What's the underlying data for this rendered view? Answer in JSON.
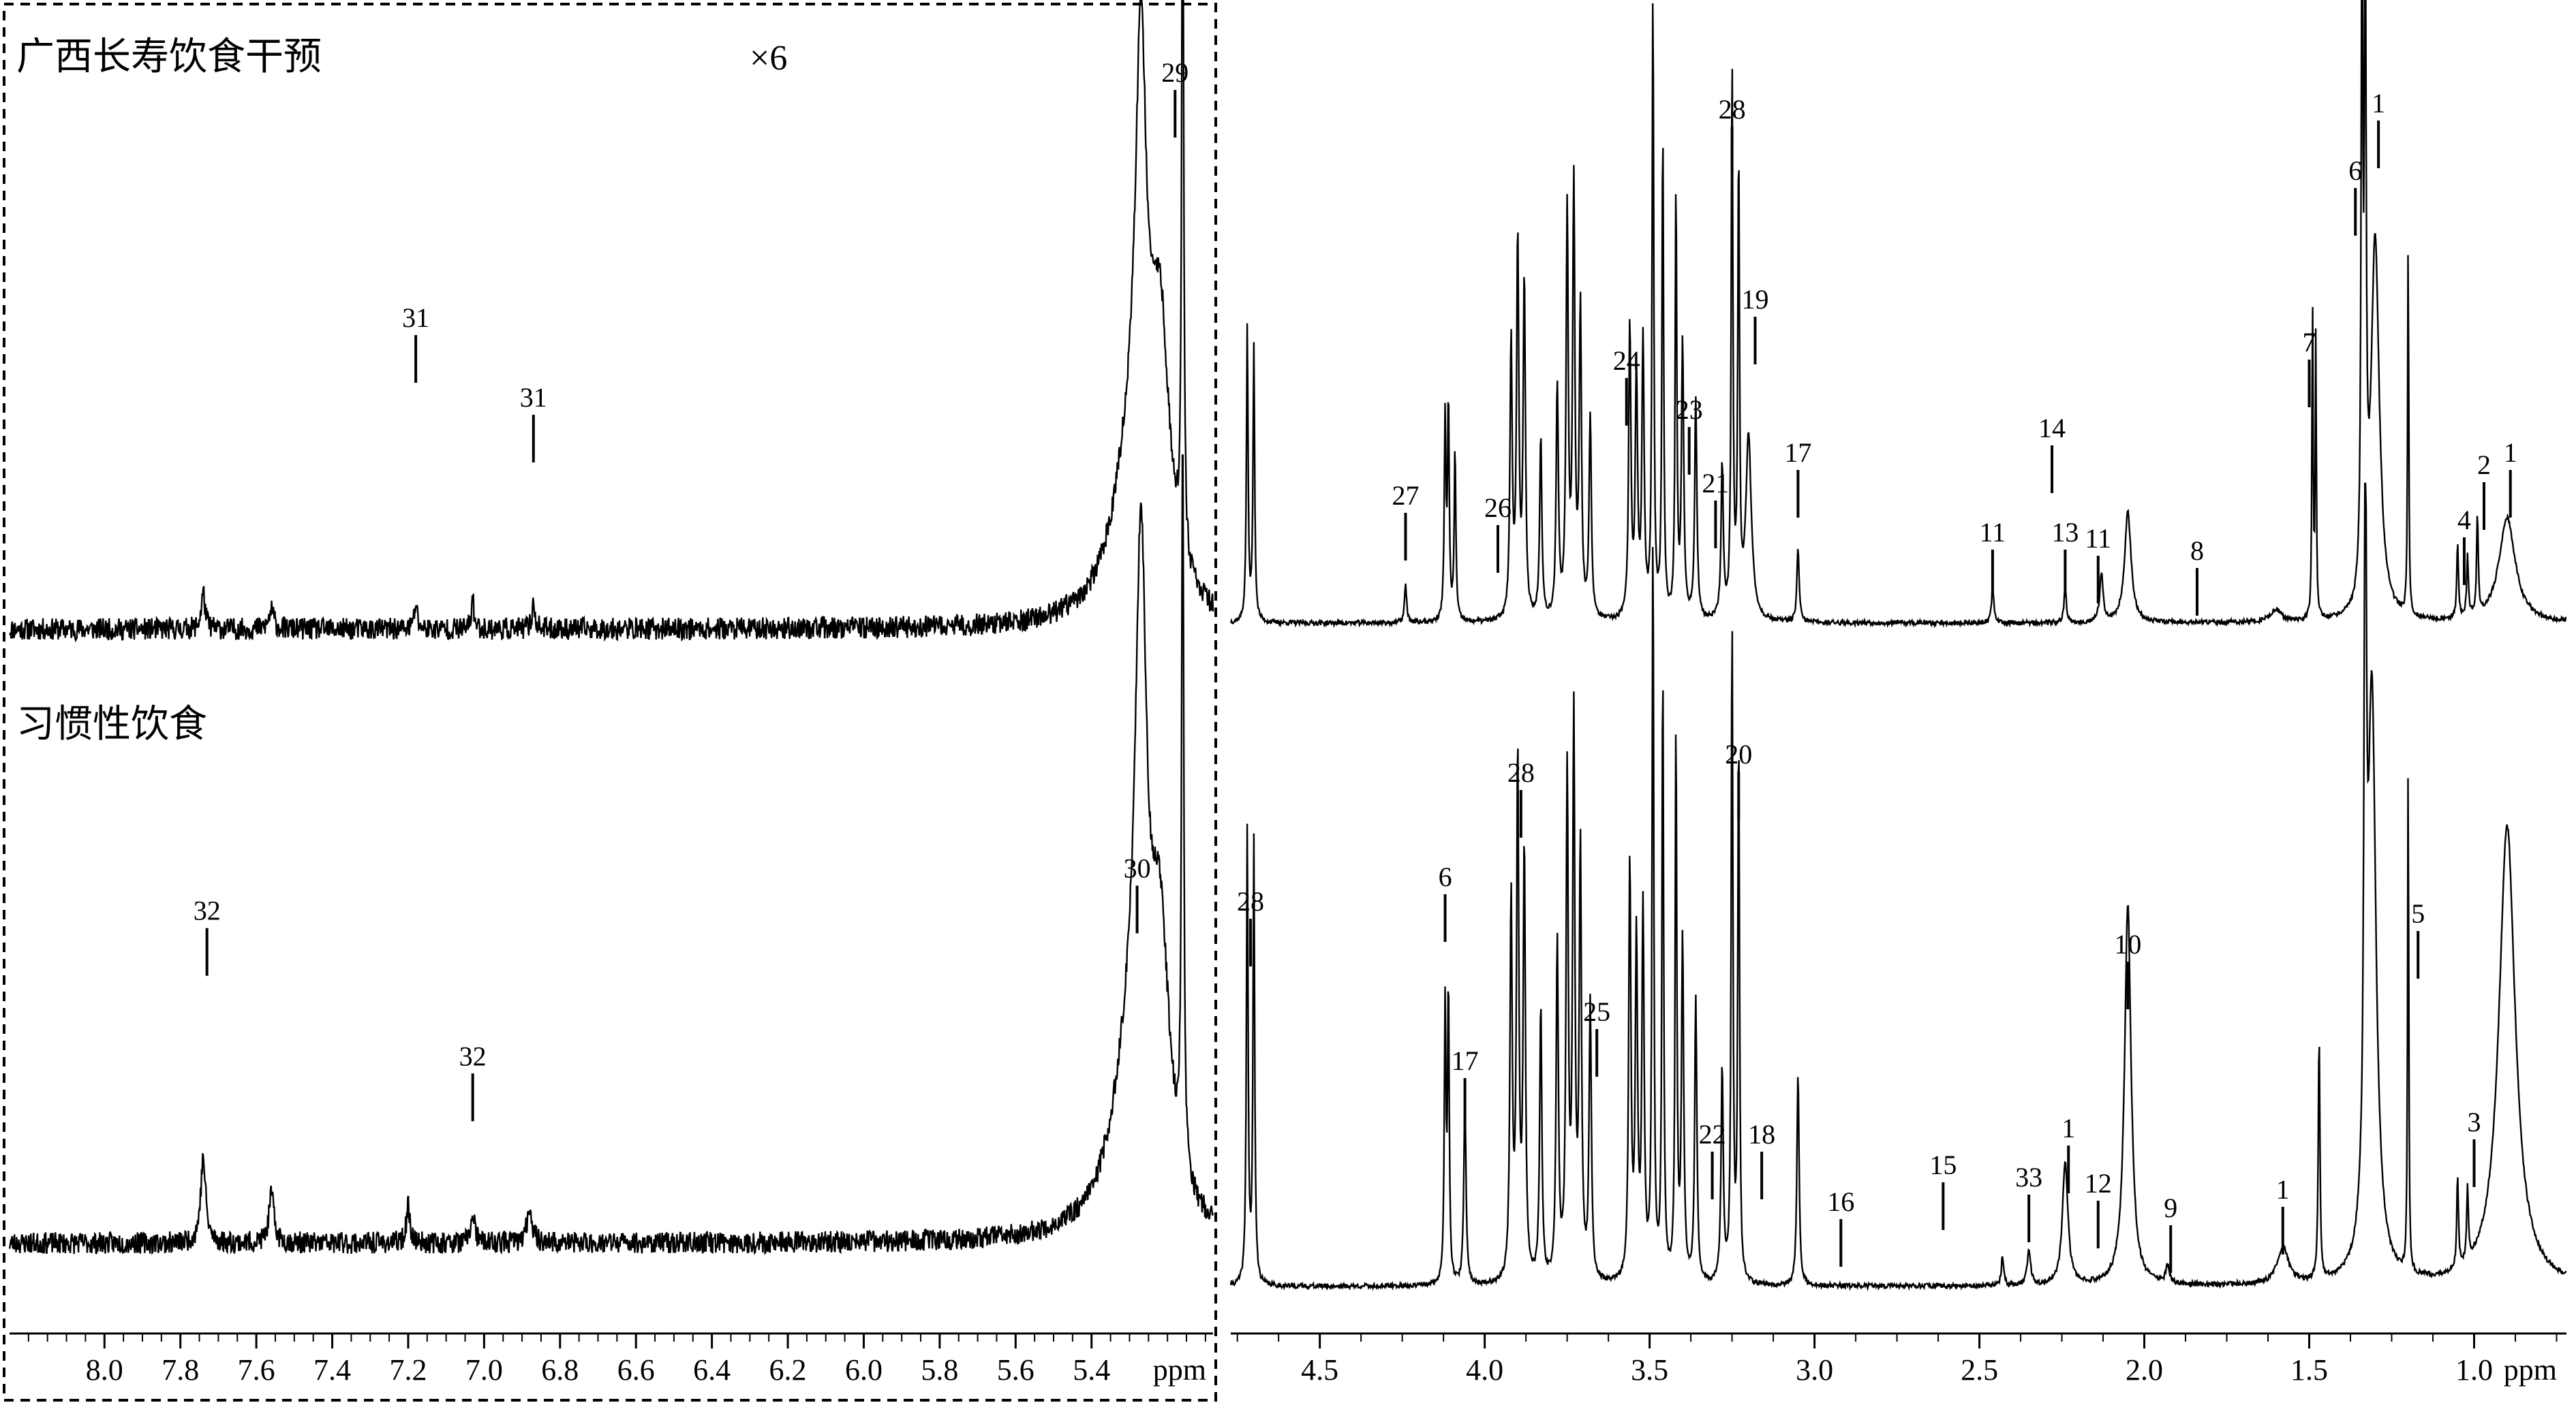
{
  "figure": {
    "panel_labels": {
      "top": "广西长寿饮食干预",
      "bottom": "习惯性饮食"
    },
    "scale_factor": "×6",
    "unit_label": "ppm"
  },
  "colors": {
    "trace": "#000000",
    "background": "#ffffff"
  },
  "chart_data": [
    {
      "type": "line",
      "title": "",
      "panel": "left (aromatic region)",
      "xlabel": "ppm",
      "ylabel": "",
      "xlim": [
        8.25,
        5.08
      ],
      "x_reversed": true,
      "grid": false,
      "x_ticks": [
        8.0,
        7.8,
        7.6,
        7.4,
        7.2,
        7.0,
        6.8,
        6.6,
        6.4,
        6.2,
        6.0,
        5.8,
        5.6,
        5.4
      ],
      "x_tick_labels": [
        "8.0",
        "7.8",
        "7.6",
        "7.4",
        "7.2",
        "7.0",
        "6.8",
        "6.6",
        "6.4",
        "6.2",
        "6.0",
        "5.8",
        "5.6",
        "5.4"
      ],
      "series": [
        {
          "name": "广西长寿饮食干预",
          "trace": {
            "baseline": 0.04,
            "noise": 0.018,
            "wiggle_seed": 11,
            "peaks": [
              [
                7.74,
                0.06,
                0.006
              ],
              [
                7.56,
                0.03,
                0.008
              ],
              [
                7.18,
                0.04,
                0.005
              ],
              [
                7.03,
                0.05,
                0.004
              ],
              [
                6.87,
                0.04,
                0.005
              ],
              [
                5.27,
                0.74,
                0.018
              ],
              [
                5.22,
                0.42,
                0.03
              ],
              [
                5.16,
                1.22,
                0.003
              ],
              [
                5.3,
                0.22,
                0.06
              ]
            ]
          },
          "annotations": [
            {
              "label": "31",
              "x": 7.18,
              "y": 0.52
            },
            {
              "label": "31",
              "x": 6.87,
              "y": 0.39
            },
            {
              "label": "29",
              "x": 5.18,
              "y": 0.92
            }
          ]
        },
        {
          "name": "习惯性饮食",
          "trace": {
            "baseline": 0.05,
            "noise": 0.018,
            "wiggle_seed": 23,
            "peaks": [
              [
                7.74,
                0.14,
                0.008
              ],
              [
                7.56,
                0.08,
                0.008
              ],
              [
                7.2,
                0.06,
                0.006
              ],
              [
                7.03,
                0.05,
                0.006
              ],
              [
                6.88,
                0.06,
                0.008
              ],
              [
                5.27,
                0.9,
                0.018
              ],
              [
                5.22,
                0.42,
                0.03
              ],
              [
                5.16,
                1.3,
                0.003
              ],
              [
                5.3,
                0.25,
                0.06
              ]
            ]
          },
          "annotations": [
            {
              "label": "32",
              "x": 7.73,
              "y": 0.57
            },
            {
              "label": "32",
              "x": 7.03,
              "y": 0.33
            },
            {
              "label": "30",
              "x": 5.28,
              "y": 0.64
            }
          ]
        }
      ]
    },
    {
      "type": "line",
      "title": "",
      "panel": "right (aliphatic region)",
      "xlabel": "ppm",
      "ylabel": "",
      "xlim": [
        4.77,
        0.72
      ],
      "x_reversed": true,
      "grid": false,
      "x_ticks": [
        4.5,
        4.0,
        3.5,
        3.0,
        2.5,
        2.0,
        1.5,
        1.0
      ],
      "x_tick_labels": [
        "4.5",
        "4.0",
        "3.5",
        "3.0",
        "2.5",
        "2.0",
        "1.5",
        "1.0"
      ],
      "series": [
        {
          "name": "广西长寿饮食干预",
          "trace": {
            "baseline": 0.05,
            "noise": 0.004,
            "wiggle_seed": 37,
            "peaks": [
              [
                4.72,
                0.48,
                0.003
              ],
              [
                4.7,
                0.45,
                0.003
              ],
              [
                4.24,
                0.06,
                0.004
              ],
              [
                4.12,
                0.33,
                0.003
              ],
              [
                4.11,
                0.35,
                0.003
              ],
              [
                4.09,
                0.28,
                0.003
              ],
              [
                3.92,
                0.45,
                0.004
              ],
              [
                3.9,
                0.62,
                0.004
              ],
              [
                3.88,
                0.55,
                0.004
              ],
              [
                3.83,
                0.3,
                0.004
              ],
              [
                3.78,
                0.38,
                0.004
              ],
              [
                3.75,
                0.66,
                0.004
              ],
              [
                3.73,
                0.7,
                0.004
              ],
              [
                3.71,
                0.5,
                0.004
              ],
              [
                3.68,
                0.33,
                0.004
              ],
              [
                3.56,
                0.48,
                0.004
              ],
              [
                3.54,
                0.4,
                0.004
              ],
              [
                3.52,
                0.45,
                0.004
              ],
              [
                3.49,
                1.02,
                0.003
              ],
              [
                3.46,
                0.8,
                0.003
              ],
              [
                3.42,
                0.7,
                0.003
              ],
              [
                3.4,
                0.45,
                0.004
              ],
              [
                3.36,
                0.36,
                0.004
              ],
              [
                3.28,
                0.25,
                0.004
              ],
              [
                3.25,
                0.9,
                0.003
              ],
              [
                3.23,
                0.74,
                0.003
              ],
              [
                3.2,
                0.3,
                0.01
              ],
              [
                3.05,
                0.12,
                0.004
              ],
              [
                2.46,
                0.06,
                0.004
              ],
              [
                2.24,
                0.06,
                0.004
              ],
              [
                2.13,
                0.08,
                0.006
              ],
              [
                2.05,
                0.18,
                0.012
              ],
              [
                1.6,
                0.02,
                0.02
              ],
              [
                1.49,
                0.52,
                0.002
              ],
              [
                1.48,
                0.46,
                0.002
              ],
              [
                1.34,
                1.1,
                0.003
              ],
              [
                1.33,
                1.05,
                0.003
              ],
              [
                1.3,
                0.62,
                0.015
              ],
              [
                1.2,
                0.62,
                0.002
              ],
              [
                1.05,
                0.12,
                0.003
              ],
              [
                1.02,
                0.1,
                0.003
              ],
              [
                0.99,
                0.16,
                0.003
              ],
              [
                0.9,
                0.17,
                0.03
              ]
            ]
          },
          "annotations": [
            {
              "label": "27",
              "x": 4.24,
              "y": 0.23
            },
            {
              "label": "26",
              "x": 3.96,
              "y": 0.21
            },
            {
              "label": "24",
              "x": 3.57,
              "y": 0.45
            },
            {
              "label": "23",
              "x": 3.38,
              "y": 0.37
            },
            {
              "label": "21",
              "x": 3.3,
              "y": 0.25
            },
            {
              "label": "28",
              "x": 3.25,
              "y": 0.86
            },
            {
              "label": "19",
              "x": 3.18,
              "y": 0.55
            },
            {
              "label": "17",
              "x": 3.05,
              "y": 0.3
            },
            {
              "label": "11",
              "x": 2.46,
              "y": 0.17
            },
            {
              "label": "14",
              "x": 2.28,
              "y": 0.34
            },
            {
              "label": "13",
              "x": 2.24,
              "y": 0.17
            },
            {
              "label": "11",
              "x": 2.14,
              "y": 0.16
            },
            {
              "label": "8",
              "x": 1.84,
              "y": 0.14
            },
            {
              "label": "7",
              "x": 1.5,
              "y": 0.48
            },
            {
              "label": "6",
              "x": 1.36,
              "y": 0.76
            },
            {
              "label": "1",
              "x": 1.29,
              "y": 0.87
            },
            {
              "label": "4",
              "x": 1.03,
              "y": 0.19
            },
            {
              "label": "2",
              "x": 0.97,
              "y": 0.28
            },
            {
              "label": "1",
              "x": 0.89,
              "y": 0.3
            }
          ]
        },
        {
          "name": "习惯性饮食",
          "trace": {
            "baseline": 0.04,
            "noise": 0.004,
            "wiggle_seed": 41,
            "peaks": [
              [
                4.72,
                0.75,
                0.003
              ],
              [
                4.7,
                0.72,
                0.003
              ],
              [
                4.12,
                0.45,
                0.003
              ],
              [
                4.11,
                0.48,
                0.003
              ],
              [
                4.06,
                0.3,
                0.004
              ],
              [
                3.92,
                0.62,
                0.004
              ],
              [
                3.9,
                0.85,
                0.004
              ],
              [
                3.88,
                0.7,
                0.004
              ],
              [
                3.83,
                0.45,
                0.004
              ],
              [
                3.78,
                0.55,
                0.004
              ],
              [
                3.75,
                0.82,
                0.004
              ],
              [
                3.73,
                0.9,
                0.004
              ],
              [
                3.71,
                0.7,
                0.004
              ],
              [
                3.68,
                0.45,
                0.004
              ],
              [
                3.56,
                0.68,
                0.004
              ],
              [
                3.54,
                0.55,
                0.004
              ],
              [
                3.52,
                0.6,
                0.004
              ],
              [
                3.49,
                1.22,
                0.003
              ],
              [
                3.46,
                1.0,
                0.003
              ],
              [
                3.42,
                0.9,
                0.003
              ],
              [
                3.4,
                0.55,
                0.004
              ],
              [
                3.36,
                0.46,
                0.004
              ],
              [
                3.28,
                0.35,
                0.004
              ],
              [
                3.25,
                1.08,
                0.003
              ],
              [
                3.23,
                0.9,
                0.003
              ],
              [
                3.05,
                0.35,
                0.004
              ],
              [
                2.43,
                0.05,
                0.004
              ],
              [
                2.35,
                0.06,
                0.006
              ],
              [
                2.24,
                0.2,
                0.01
              ],
              [
                2.05,
                0.62,
                0.012
              ],
              [
                1.93,
                0.03,
                0.006
              ],
              [
                1.58,
                0.06,
                0.02
              ],
              [
                1.47,
                0.4,
                0.003
              ],
              [
                1.33,
                1.2,
                0.004
              ],
              [
                1.31,
                0.95,
                0.015
              ],
              [
                1.2,
                0.85,
                0.002
              ],
              [
                1.05,
                0.15,
                0.003
              ],
              [
                1.02,
                0.12,
                0.003
              ],
              [
                0.9,
                0.75,
                0.03
              ]
            ]
          },
          "annotations": [
            {
              "label": "28",
              "x": 4.71,
              "y": 0.64
            },
            {
              "label": "6",
              "x": 4.12,
              "y": 0.68
            },
            {
              "label": "17",
              "x": 4.06,
              "y": 0.38
            },
            {
              "label": "28",
              "x": 3.89,
              "y": 0.85
            },
            {
              "label": "25",
              "x": 3.66,
              "y": 0.46
            },
            {
              "label": "22",
              "x": 3.31,
              "y": 0.26
            },
            {
              "label": "20",
              "x": 3.23,
              "y": 0.88
            },
            {
              "label": "18",
              "x": 3.16,
              "y": 0.26
            },
            {
              "label": "16",
              "x": 2.92,
              "y": 0.15
            },
            {
              "label": "15",
              "x": 2.61,
              "y": 0.21
            },
            {
              "label": "33",
              "x": 2.35,
              "y": 0.19
            },
            {
              "label": "1",
              "x": 2.23,
              "y": 0.27
            },
            {
              "label": "12",
              "x": 2.14,
              "y": 0.18
            },
            {
              "label": "10",
              "x": 2.05,
              "y": 0.57
            },
            {
              "label": "9",
              "x": 1.92,
              "y": 0.14
            },
            {
              "label": "1",
              "x": 1.58,
              "y": 0.17
            },
            {
              "label": "5",
              "x": 1.17,
              "y": 0.62
            },
            {
              "label": "3",
              "x": 1.0,
              "y": 0.28
            }
          ]
        }
      ]
    }
  ]
}
